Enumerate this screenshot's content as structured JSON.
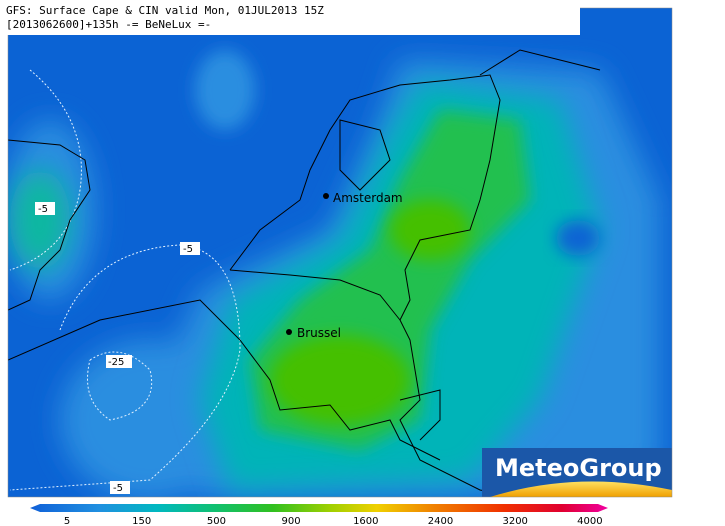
{
  "header": {
    "title": "GFS: Surface Cape & CIN valid Mon, 01JUL2013 15Z",
    "subtitle": "[2013062600]+135h -= BeNeLux =-"
  },
  "cities": [
    "Amsterdam",
    "Brussel"
  ],
  "contour_labels": [
    "-5",
    "-5",
    "-25",
    "-5"
  ],
  "logo": "MeteoGroup",
  "legend": {
    "labels": [
      5,
      150,
      500,
      900,
      1600,
      2400,
      3200,
      4000
    ]
  }
}
